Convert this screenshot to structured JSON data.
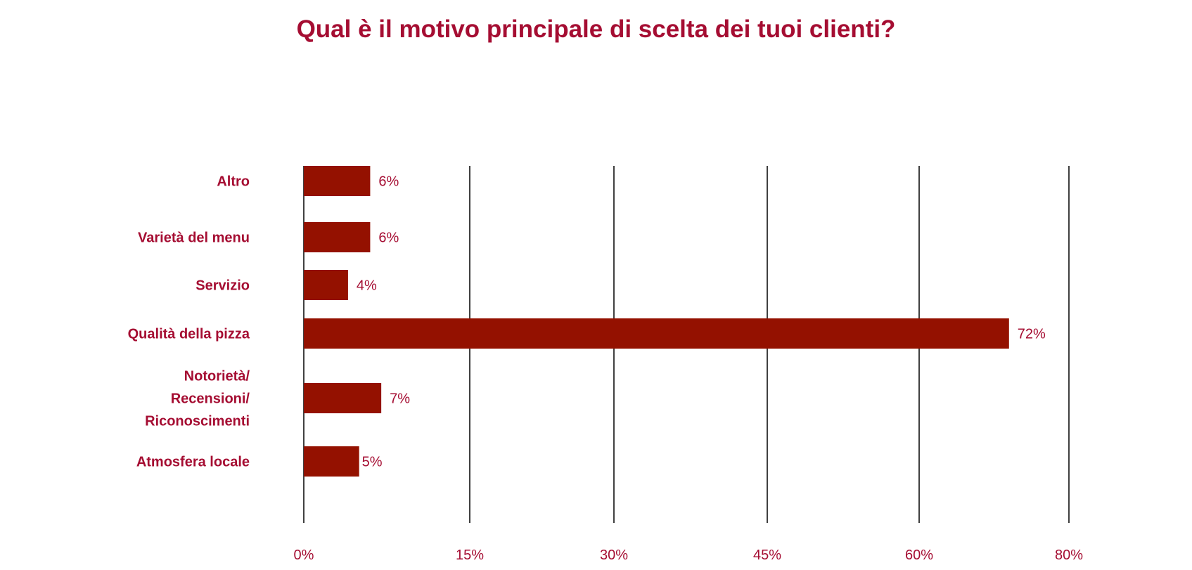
{
  "chart_data": {
    "type": "bar",
    "orientation": "horizontal",
    "title": "Qual è il motivo principale di scelta dei tuoi clienti?",
    "categories": [
      [
        "Altro"
      ],
      [
        "Varietà del menu"
      ],
      [
        "Servizio"
      ],
      [
        "Qualità della pizza"
      ],
      [
        "Notorietà/",
        "Recensioni/",
        "Riconoscimenti"
      ],
      [
        "Atmosfera locale"
      ]
    ],
    "values": [
      6,
      6,
      4,
      72,
      7,
      5
    ],
    "data_labels": [
      "6%",
      "6%",
      "4%",
      "72%",
      "7%",
      "5%"
    ],
    "x_ticks": [
      0,
      15,
      30,
      45,
      60,
      80
    ],
    "x_tick_labels": [
      "0%",
      "15%",
      "30%",
      "45%",
      "60%",
      "80%"
    ],
    "xlim": [
      0,
      80
    ],
    "grid": "vertical",
    "legend": "none",
    "colors": {
      "bar": "#941100",
      "text": "#a50d32",
      "grid": "#000000"
    }
  }
}
